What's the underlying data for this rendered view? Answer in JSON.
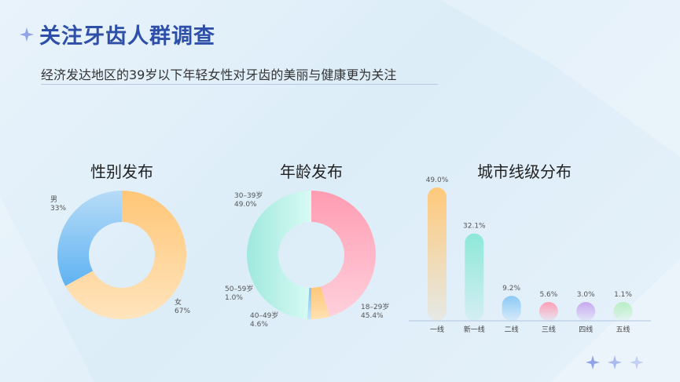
{
  "header": {
    "title": "关注牙齿人群调查",
    "subtitle": "经济发达地区的39岁以下年轻女性对牙齿的美丽与健康更为关注"
  },
  "decor": {
    "title_icon": "sparkle-icon",
    "corner_icons": [
      "sparkle-icon",
      "sparkle-icon",
      "sparkle-icon"
    ]
  },
  "chart_data": [
    {
      "type": "pie",
      "title": "性别发布",
      "slices": [
        {
          "name": "女",
          "value": 67,
          "label": "67%",
          "color": "#ffc97a"
        },
        {
          "name": "男",
          "value": 33,
          "label": "33%",
          "color": "#7cc4f7"
        }
      ]
    },
    {
      "type": "pie",
      "title": "年龄发布",
      "slices": [
        {
          "name": "18–29岁",
          "value": 45.4,
          "label": "45.4%",
          "color": "#ff9fb6"
        },
        {
          "name": "40–49岁",
          "value": 4.6,
          "label": "4.6%",
          "color": "#ffc97a"
        },
        {
          "name": "50–59岁",
          "value": 1.0,
          "label": "1.0%",
          "color": "#8cc9f5"
        },
        {
          "name": "30–39岁",
          "value": 49.0,
          "label": "49.0%",
          "color": "#a8ece4"
        }
      ]
    },
    {
      "type": "bar",
      "title": "城市线级分布",
      "categories": [
        "一线",
        "新一线",
        "二线",
        "三线",
        "四线",
        "五线"
      ],
      "values": [
        49.0,
        32.1,
        9.2,
        5.6,
        3.0,
        1.1
      ],
      "value_labels": [
        "49.0%",
        "32.1%",
        "9.2%",
        "5.6%",
        "3.0%",
        "1.1%"
      ],
      "colors": [
        "#ffc97a",
        "#8de8d8",
        "#8cc9f5",
        "#ff9fb6",
        "#c9a8ef",
        "#b8f0c2"
      ]
    }
  ]
}
